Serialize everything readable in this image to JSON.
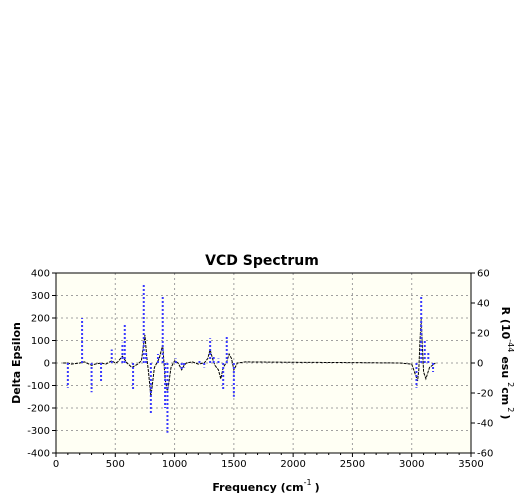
{
  "chart_data": {
    "type": "line",
    "title": "VCD Spectrum",
    "xlabel": "Frequency (cm",
    "xlabel_sup": "-1",
    "xlabel_tail": ")",
    "ylabel_left": "Delta Epsilon",
    "ylabel_right_parts": [
      "R (10",
      "-44",
      "esu",
      "2",
      "cm",
      "2",
      ")"
    ],
    "xlim": [
      0,
      3500
    ],
    "ylim_left": [
      -400,
      400
    ],
    "ylim_right": [
      -60,
      60
    ],
    "x_ticks": [
      "0",
      "500",
      "1000",
      "1500",
      "2000",
      "2500",
      "3000",
      "3500"
    ],
    "y_ticks_left": [
      "400",
      "300",
      "200",
      "100",
      "0",
      "-100",
      "-200",
      "-300",
      "-400"
    ],
    "y_ticks_right": [
      "60",
      "40",
      "20",
      "0",
      "-20",
      "-40",
      "-60"
    ],
    "grid": true,
    "colors": {
      "background": "#fffff4",
      "spectrum": "#000000",
      "sticks": "#3a3aff",
      "grid": "#a0a0a0"
    },
    "series": [
      {
        "style": "solid",
        "x": [
          60,
          100,
          130,
          200,
          240,
          300,
          330,
          380,
          420,
          470,
          500,
          520,
          560,
          600,
          640,
          690,
          720,
          750,
          765,
          780,
          800,
          830,
          850,
          870,
          900,
          920,
          940,
          970,
          1000,
          1030,
          1060,
          1080,
          1100,
          1150,
          1200,
          1250,
          1280,
          1300,
          1320,
          1340,
          1370,
          1390,
          1410,
          1440,
          1460,
          1480,
          1500,
          1530,
          1600,
          2000,
          2500,
          2900,
          3000,
          3030,
          3050,
          3060,
          3070,
          3080,
          3090,
          3100,
          3120,
          3150,
          3200
        ],
        "y": [
          0,
          0,
          -5,
          0,
          5,
          -10,
          -5,
          0,
          -5,
          10,
          0,
          5,
          30,
          0,
          -20,
          -5,
          10,
          125,
          30,
          -40,
          -150,
          -20,
          0,
          20,
          80,
          -70,
          -130,
          -20,
          10,
          0,
          -30,
          -10,
          0,
          5,
          -5,
          0,
          20,
          60,
          20,
          -10,
          -30,
          -70,
          -20,
          5,
          40,
          20,
          -30,
          0,
          5,
          3,
          2,
          0,
          -5,
          -50,
          -80,
          -30,
          100,
          200,
          70,
          -40,
          -70,
          -20,
          0
        ]
      },
      {
        "style": "sticks",
        "x": [
          100,
          220,
          300,
          380,
          470,
          560,
          580,
          650,
          740,
          760,
          800,
          860,
          900,
          920,
          940,
          1010,
          1060,
          1080,
          1210,
          1250,
          1300,
          1330,
          1370,
          1410,
          1440,
          1500,
          3040,
          3080,
          3110,
          3140,
          3180
        ],
        "y": [
          -110,
          200,
          -130,
          -80,
          60,
          90,
          170,
          -120,
          350,
          50,
          -230,
          40,
          300,
          -200,
          -310,
          20,
          -30,
          -20,
          15,
          -20,
          110,
          30,
          20,
          -120,
          120,
          -150,
          -110,
          300,
          100,
          50,
          -40
        ]
      }
    ]
  }
}
